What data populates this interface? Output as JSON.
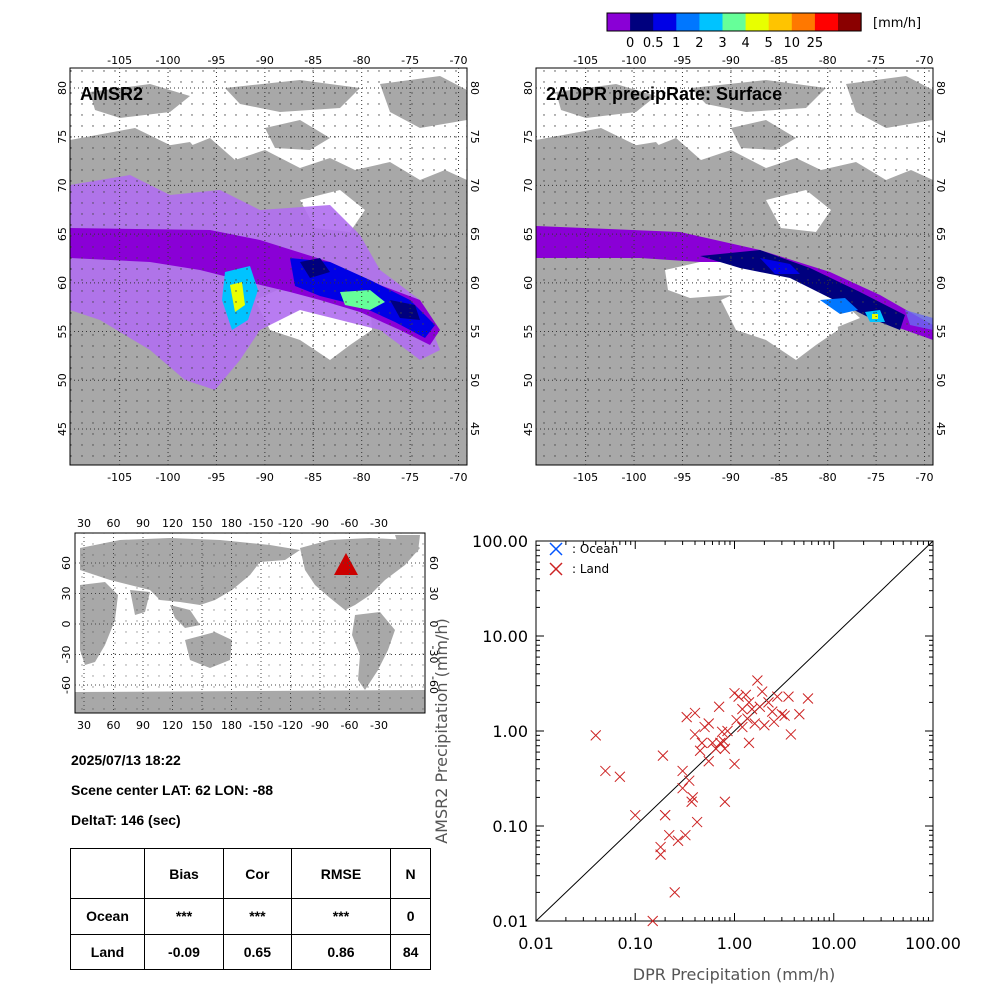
{
  "colorbar": {
    "unit": "[mm/h]",
    "colors": [
      "#8a00d6",
      "#00007e",
      "#0000e6",
      "#0077ff",
      "#00c3ff",
      "#66ff99",
      "#e8ff00",
      "#ffc400",
      "#ff7800",
      "#ff0000",
      "#8a0000"
    ],
    "labels": [
      "0",
      "0.5",
      "1",
      "2",
      "3",
      "4",
      "5",
      "10",
      "25"
    ]
  },
  "maps": {
    "amsr2_title": "AMSR2",
    "dpr_title": "2ADPR precipRate: Surface",
    "lon_ticks": [
      "-105",
      "-100",
      "-95",
      "-90",
      "-85",
      "-80",
      "-75",
      "-70"
    ],
    "lat_ticks": [
      "80",
      "75",
      "70",
      "65",
      "60",
      "55",
      "50",
      "45"
    ]
  },
  "globe": {
    "top_ticks": [
      "30",
      "60",
      "90",
      "120",
      "150",
      "180",
      "-150",
      "-120",
      "-90",
      "-60",
      "-30"
    ],
    "lat_ticks": [
      "60",
      "30",
      "0",
      "-30",
      "-60"
    ],
    "marker_color": "#cc0000"
  },
  "info": {
    "datetime": "2025/07/13 18:22",
    "scene_center": "Scene center LAT: 62   LON: -88",
    "delta_t": "DeltaT:  146 (sec)"
  },
  "stats": {
    "headers": [
      "",
      "Bias",
      "Cor",
      "RMSE",
      "N"
    ],
    "rows": [
      [
        "Ocean",
        "***",
        "***",
        "***",
        "0"
      ],
      [
        "Land",
        "-0.09",
        "0.65",
        "0.86",
        "84"
      ]
    ]
  },
  "chart_data": {
    "type": "scatter",
    "xlabel": "DPR Precipitation (mm/h)",
    "ylabel": "AMSR2 Precipitation (mm/h)",
    "xscale": "log",
    "yscale": "log",
    "xlim": [
      0.01,
      100
    ],
    "ylim": [
      0.01,
      100
    ],
    "x_tick_labels": [
      "0.01",
      "0.10",
      "1.00",
      "10.00",
      "100.00"
    ],
    "y_tick_labels": [
      "0.01",
      "0.10",
      "1.00",
      "10.00",
      "100.00"
    ],
    "legend": {
      "position": "top-left",
      "entries": [
        {
          "name": ": Ocean",
          "color": "#0055ff"
        },
        {
          "name": ": Land",
          "color": "#cc2222"
        }
      ]
    },
    "series": [
      {
        "name": ": Ocean",
        "color": "#0055ff",
        "points": []
      },
      {
        "name": ": Land",
        "color": "#cc2222",
        "points": [
          [
            0.04,
            0.9
          ],
          [
            0.05,
            0.38
          ],
          [
            0.07,
            0.33
          ],
          [
            0.1,
            0.13
          ],
          [
            0.15,
            0.01
          ],
          [
            0.18,
            0.05
          ],
          [
            0.18,
            0.06
          ],
          [
            0.19,
            0.55
          ],
          [
            0.2,
            0.13
          ],
          [
            0.2,
            0.13
          ],
          [
            0.22,
            0.08
          ],
          [
            0.25,
            0.02
          ],
          [
            0.27,
            0.07
          ],
          [
            0.3,
            0.38
          ],
          [
            0.3,
            0.25
          ],
          [
            0.32,
            0.08
          ],
          [
            0.33,
            1.4
          ],
          [
            0.35,
            0.3
          ],
          [
            0.37,
            0.18
          ],
          [
            0.38,
            0.2
          ],
          [
            0.4,
            1.55
          ],
          [
            0.4,
            0.92
          ],
          [
            0.42,
            0.11
          ],
          [
            0.45,
            0.62
          ],
          [
            0.47,
            0.75
          ],
          [
            0.5,
            1.1
          ],
          [
            0.55,
            0.48
          ],
          [
            0.55,
            1.2
          ],
          [
            0.6,
            0.75
          ],
          [
            0.65,
            0.65
          ],
          [
            0.7,
            1.8
          ],
          [
            0.72,
            0.75
          ],
          [
            0.75,
            0.98
          ],
          [
            0.78,
            0.78
          ],
          [
            0.8,
            0.65
          ],
          [
            0.8,
            0.18
          ],
          [
            0.85,
            1.0
          ],
          [
            1.0,
            2.5
          ],
          [
            1.0,
            0.45
          ],
          [
            1.05,
            1.3
          ],
          [
            1.1,
            2.3
          ],
          [
            1.2,
            1.7
          ],
          [
            1.2,
            1.1
          ],
          [
            1.3,
            2.4
          ],
          [
            1.35,
            1.35
          ],
          [
            1.4,
            0.75
          ],
          [
            1.4,
            2.0
          ],
          [
            1.5,
            1.7
          ],
          [
            1.6,
            1.2
          ],
          [
            1.7,
            3.4
          ],
          [
            1.8,
            1.8
          ],
          [
            1.9,
            2.6
          ],
          [
            2.0,
            1.15
          ],
          [
            2.2,
            2.0
          ],
          [
            2.4,
            1.6
          ],
          [
            2.5,
            1.25
          ],
          [
            2.7,
            2.3
          ],
          [
            3.0,
            1.5
          ],
          [
            3.2,
            1.45
          ],
          [
            3.5,
            2.3
          ],
          [
            3.7,
            0.92
          ],
          [
            4.5,
            1.5
          ],
          [
            5.5,
            2.2
          ]
        ]
      }
    ]
  }
}
